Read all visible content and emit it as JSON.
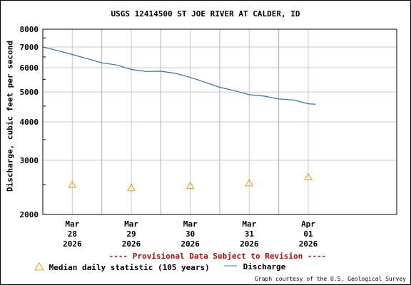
{
  "chart_data": {
    "type": "line",
    "title": "USGS 12414500 ST JOE RIVER AT CALDER, ID",
    "ylabel": "Discharge, cubic feet per second",
    "xlabel": "",
    "y_scale": "log",
    "ylim": [
      2000,
      8000
    ],
    "y_ticks": [
      "8000",
      "7000",
      "6000",
      "5000",
      "4000",
      "3000",
      "2000"
    ],
    "x_range": [
      "2026-03-27T12:00",
      "2026-04-02T12:00"
    ],
    "x_ticks": [
      {
        "x": "2026-03-28T00:00",
        "month": "Mar",
        "day": "28",
        "year": "2026"
      },
      {
        "x": "2026-03-29T00:00",
        "month": "Mar",
        "day": "29",
        "year": "2026"
      },
      {
        "x": "2026-03-30T00:00",
        "month": "Mar",
        "day": "30",
        "year": "2026"
      },
      {
        "x": "2026-03-31T00:00",
        "month": "Mar",
        "day": "31",
        "year": "2026"
      },
      {
        "x": "2026-04-01T00:00",
        "month": "Apr",
        "day": "01",
        "year": "2026"
      }
    ],
    "grid": true,
    "series": [
      {
        "name": "Discharge",
        "color": "#1f78b4",
        "style": "line",
        "points": [
          {
            "x": "2026-03-27T12:00",
            "y": 7000
          },
          {
            "x": "2026-03-27T18:00",
            "y": 6820
          },
          {
            "x": "2026-03-28T00:00",
            "y": 6620
          },
          {
            "x": "2026-03-28T06:00",
            "y": 6420
          },
          {
            "x": "2026-03-28T12:00",
            "y": 6220
          },
          {
            "x": "2026-03-28T18:00",
            "y": 6120
          },
          {
            "x": "2026-03-29T00:00",
            "y": 5920
          },
          {
            "x": "2026-03-29T06:00",
            "y": 5830
          },
          {
            "x": "2026-03-29T12:00",
            "y": 5840
          },
          {
            "x": "2026-03-29T18:00",
            "y": 5750
          },
          {
            "x": "2026-03-30T00:00",
            "y": 5580
          },
          {
            "x": "2026-03-30T06:00",
            "y": 5380
          },
          {
            "x": "2026-03-30T12:00",
            "y": 5180
          },
          {
            "x": "2026-03-30T18:00",
            "y": 5050
          },
          {
            "x": "2026-03-31T00:00",
            "y": 4900
          },
          {
            "x": "2026-03-31T06:00",
            "y": 4850
          },
          {
            "x": "2026-03-31T12:00",
            "y": 4750
          },
          {
            "x": "2026-03-31T18:00",
            "y": 4710
          },
          {
            "x": "2026-04-01T00:00",
            "y": 4580
          },
          {
            "x": "2026-04-01T03:00",
            "y": 4560
          }
        ]
      },
      {
        "name": "Median daily statistic (105 years)",
        "color": "#e8a000",
        "style": "triangle",
        "points": [
          {
            "x": "2026-03-28T00:00",
            "y": 2500
          },
          {
            "x": "2026-03-29T00:00",
            "y": 2440
          },
          {
            "x": "2026-03-30T00:00",
            "y": 2480
          },
          {
            "x": "2026-03-31T00:00",
            "y": 2530
          },
          {
            "x": "2026-04-01T00:00",
            "y": 2650
          }
        ]
      }
    ]
  },
  "notice": "---- Provisional Data Subject to Revision ----",
  "legend": {
    "median_label": "Median daily statistic (105 years)",
    "discharge_label": "Discharge"
  },
  "credit": "Graph courtesy of the U.S. Geological Survey"
}
